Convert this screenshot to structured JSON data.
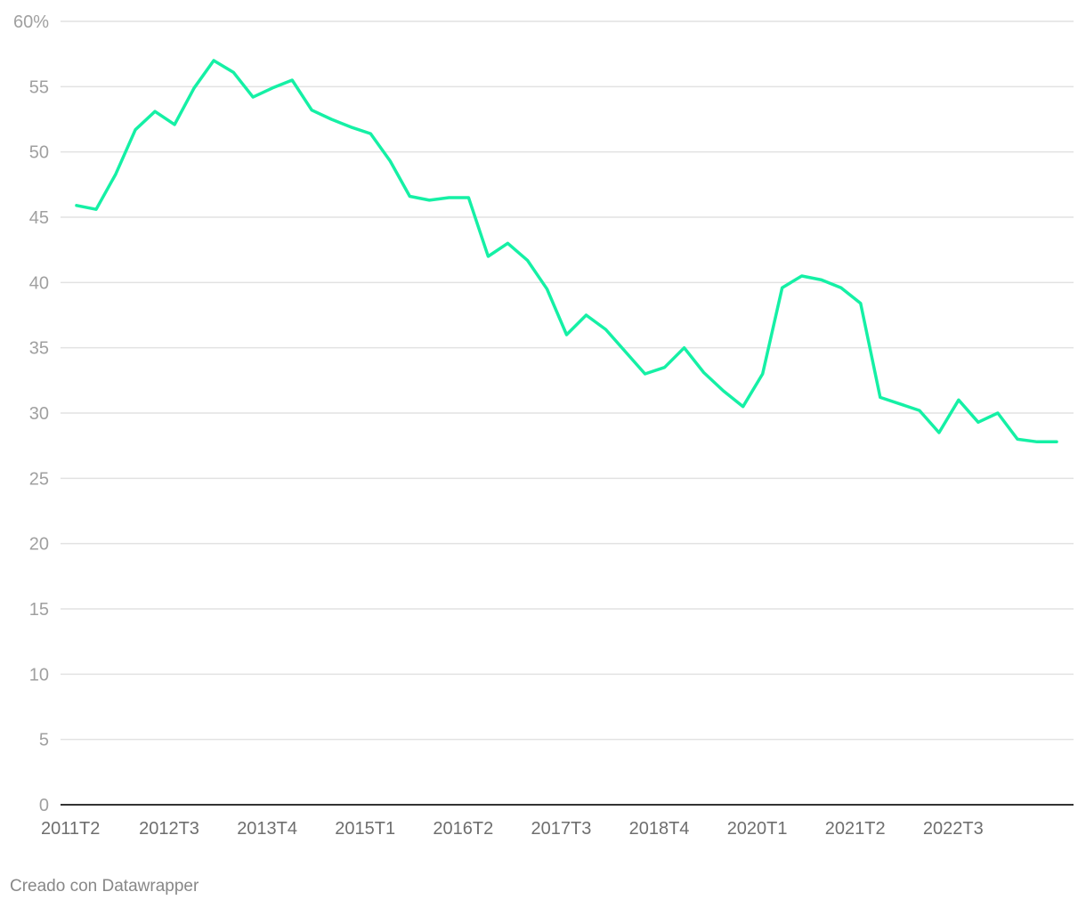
{
  "chart_data": {
    "type": "line",
    "title": "",
    "xlabel": "",
    "ylabel": "",
    "ylim": [
      0,
      60
    ],
    "y_ticks": [
      0,
      5,
      10,
      15,
      20,
      25,
      30,
      35,
      40,
      45,
      50,
      55,
      60
    ],
    "y_tick_labels": [
      "0",
      "5",
      "10",
      "15",
      "20",
      "25",
      "30",
      "35",
      "40",
      "45",
      "50",
      "55",
      "60%"
    ],
    "x": [
      "2011T2",
      "2011T3",
      "2011T4",
      "2012T1",
      "2012T2",
      "2012T3",
      "2012T4",
      "2013T1",
      "2013T2",
      "2013T3",
      "2013T4",
      "2014T1",
      "2014T2",
      "2014T3",
      "2014T4",
      "2015T1",
      "2015T2",
      "2015T3",
      "2015T4",
      "2016T1",
      "2016T2",
      "2016T3",
      "2016T4",
      "2017T1",
      "2017T2",
      "2017T3",
      "2017T4",
      "2018T1",
      "2018T2",
      "2018T3",
      "2018T4",
      "2019T1",
      "2019T2",
      "2019T3",
      "2019T4",
      "2020T1",
      "2020T2",
      "2020T3",
      "2020T4",
      "2021T1",
      "2021T2",
      "2021T3",
      "2021T4",
      "2022T1",
      "2022T2",
      "2022T3",
      "2022T4",
      "2023T1",
      "2023T2",
      "2023T3",
      "2023T4"
    ],
    "x_tick_labels": [
      "2011T2",
      "2012T3",
      "2013T4",
      "2015T1",
      "2016T2",
      "2017T3",
      "2018T4",
      "2020T1",
      "2021T2",
      "2022T3"
    ],
    "series": [
      {
        "name": "",
        "color": "#15f0a5",
        "values": [
          45.9,
          45.6,
          48.3,
          51.7,
          53.1,
          52.1,
          54.9,
          57.0,
          56.1,
          54.2,
          54.9,
          55.5,
          53.2,
          52.5,
          51.9,
          51.4,
          49.3,
          46.6,
          46.3,
          46.5,
          46.5,
          42.0,
          43.0,
          41.7,
          39.5,
          36.0,
          37.5,
          36.4,
          34.7,
          33.0,
          33.5,
          35.0,
          33.1,
          31.7,
          30.5,
          33.0,
          39.6,
          40.5,
          40.2,
          39.6,
          38.4,
          31.2,
          30.7,
          30.2,
          28.5,
          31.0,
          29.3,
          30.0,
          28.0,
          27.8,
          27.8
        ]
      }
    ],
    "grid": true,
    "legend": "none"
  },
  "footer": {
    "credit": "Creado con Datawrapper"
  }
}
